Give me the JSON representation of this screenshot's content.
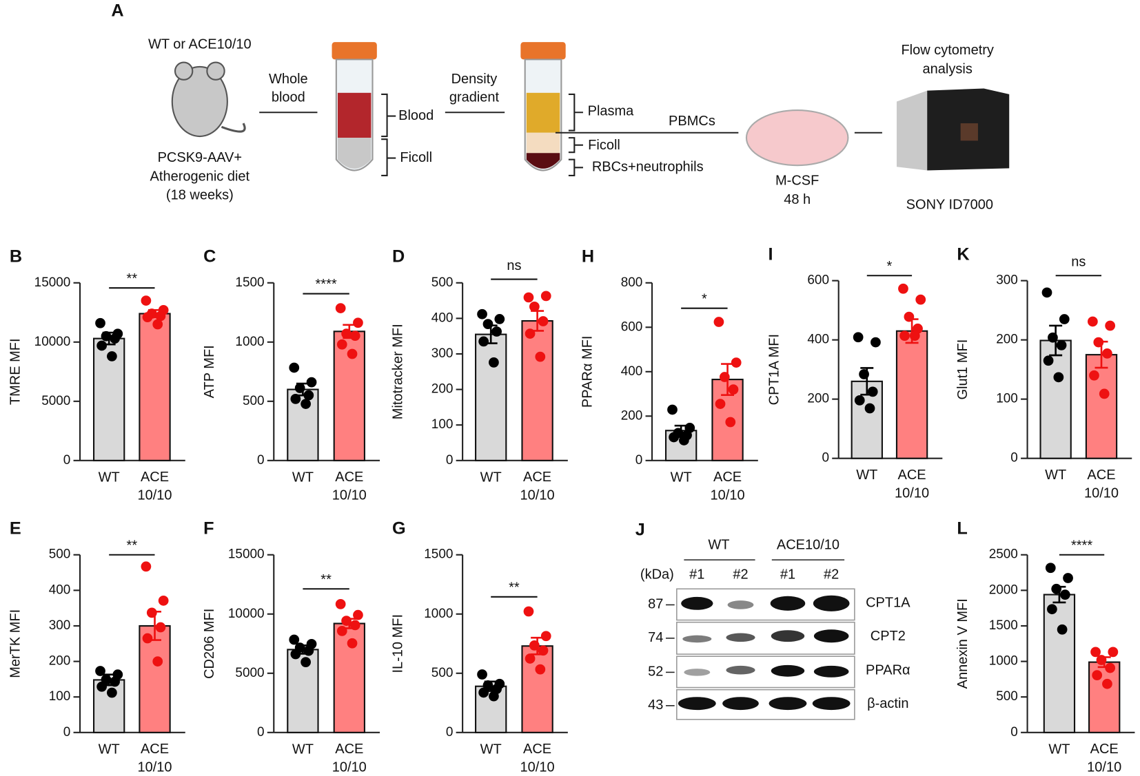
{
  "diagram": {
    "letter": "A",
    "texts": [
      "WT or ACE10/10",
      "PCSK9-AAV+",
      "Atherogenic diet",
      "(18 weeks)",
      "Whole",
      "blood",
      "Blood",
      "Ficoll",
      "Density",
      "gradient",
      "Plasma",
      "Ficoll",
      "RBCs+neutrophils",
      "PBMCs",
      "M-CSF",
      "48 h",
      "Flow cytometry",
      "analysis",
      "SONY ID7000"
    ]
  },
  "blot": {
    "letter": "J",
    "groups": [
      "WT",
      "ACE10/10"
    ],
    "unit": "(kDa)",
    "lanes": [
      "#1",
      "#2",
      "#1",
      "#2"
    ],
    "markers": [
      "87",
      "74",
      "52",
      "43"
    ],
    "proteins": [
      "CPT1A",
      "CPT2",
      "PPARα",
      "β-actin"
    ]
  },
  "chart_data": [
    {
      "type": "bar",
      "letter": "B",
      "ylabel": "TMRE MFI",
      "categories": [
        "WT",
        "ACE 10/10"
      ],
      "values": [
        10300,
        12400
      ],
      "errors": [
        500,
        300
      ],
      "points": [
        [
          11600,
          10700,
          10500,
          10300,
          9700,
          8800
        ],
        [
          13500,
          12700,
          12400,
          12200,
          12100,
          11500
        ]
      ],
      "colors": [
        "#d9d9d9",
        "#ff8080"
      ],
      "point_colors": [
        "#000000",
        "#ee1111"
      ],
      "significance": "**",
      "ylim": [
        0,
        15000
      ],
      "yticks": [
        0,
        5000,
        10000,
        15000
      ]
    },
    {
      "type": "bar",
      "letter": "C",
      "ylabel": "ATP MFI",
      "categories": [
        "WT",
        "ACE 10/10"
      ],
      "values": [
        600,
        1090
      ],
      "errors": [
        50,
        55
      ],
      "points": [
        [
          784,
          661,
          612,
          551,
          520,
          478
        ],
        [
          1286,
          1163,
          1071,
          1053,
          980,
          900
        ]
      ],
      "colors": [
        "#d9d9d9",
        "#ff8080"
      ],
      "point_colors": [
        "#000000",
        "#ee1111"
      ],
      "significance": "****",
      "ylim": [
        0,
        1500
      ],
      "yticks": [
        0,
        500,
        1000,
        1500
      ]
    },
    {
      "type": "bar",
      "letter": "D",
      "ylabel": "Mitotracker MFI",
      "categories": [
        "WT",
        "ACE 10/10"
      ],
      "values": [
        355,
        393
      ],
      "errors": [
        25,
        28
      ],
      "points": [
        [
          412,
          398,
          384,
          363,
          335,
          276
        ],
        [
          459,
          463,
          433,
          392,
          357,
          292
        ]
      ],
      "colors": [
        "#d9d9d9",
        "#ff8080"
      ],
      "point_colors": [
        "#000000",
        "#ee1111"
      ],
      "significance": "ns",
      "ylim": [
        0,
        500
      ],
      "yticks": [
        0,
        100,
        200,
        300,
        400,
        500
      ]
    },
    {
      "type": "bar",
      "letter": "H",
      "ylabel": "PPARα MFI",
      "categories": [
        "WT",
        "ACE 10/10"
      ],
      "values": [
        135,
        365
      ],
      "errors": [
        22,
        70
      ],
      "points": [
        [
          229,
          147,
          124,
          114,
          105,
          91
        ],
        [
          624,
          441,
          376,
          320,
          255,
          173
        ]
      ],
      "colors": [
        "#d9d9d9",
        "#ff8080"
      ],
      "point_colors": [
        "#000000",
        "#ee1111"
      ],
      "significance": "*",
      "ylim": [
        0,
        800
      ],
      "yticks": [
        0,
        200,
        400,
        600,
        800
      ]
    },
    {
      "type": "bar",
      "letter": "I",
      "ylabel": "CPT1A MFI",
      "categories": [
        "WT",
        "ACE 10/10"
      ],
      "values": [
        260,
        430
      ],
      "errors": [
        45,
        40
      ],
      "points": [
        [
          409,
          392,
          284,
          225,
          196,
          169
        ],
        [
          573,
          536,
          478,
          438,
          414,
          414
        ]
      ],
      "colors": [
        "#d9d9d9",
        "#ff8080"
      ],
      "point_colors": [
        "#000000",
        "#ee1111"
      ],
      "significance": "*",
      "ylim": [
        0,
        600
      ],
      "yticks": [
        0,
        200,
        400,
        600
      ]
    },
    {
      "type": "bar",
      "letter": "K",
      "ylabel": "Glut1 MFI",
      "categories": [
        "WT",
        "ACE 10/10"
      ],
      "values": [
        199,
        175
      ],
      "errors": [
        25,
        22
      ],
      "points": [
        [
          280,
          235,
          204,
          191,
          165,
          137
        ],
        [
          231,
          224,
          196,
          177,
          140,
          109
        ]
      ],
      "colors": [
        "#d9d9d9",
        "#ff8080"
      ],
      "point_colors": [
        "#000000",
        "#ee1111"
      ],
      "significance": "ns",
      "ylim": [
        0,
        300
      ],
      "yticks": [
        0,
        100,
        200,
        300
      ]
    },
    {
      "type": "bar",
      "letter": "E",
      "ylabel": "MerTK MFI",
      "categories": [
        "WT",
        "ACE 10/10"
      ],
      "values": [
        148,
        300
      ],
      "errors": [
        15,
        40
      ],
      "points": [
        [
          173,
          163,
          149,
          143,
          129,
          112
        ],
        [
          467,
          371,
          337,
          296,
          265,
          200
        ]
      ],
      "colors": [
        "#d9d9d9",
        "#ff8080"
      ],
      "point_colors": [
        "#000000",
        "#ee1111"
      ],
      "significance": "**",
      "ylim": [
        0,
        500
      ],
      "yticks": [
        0,
        100,
        200,
        300,
        400,
        500
      ]
    },
    {
      "type": "bar",
      "letter": "F",
      "ylabel": "CD206 MFI",
      "categories": [
        "WT",
        "ACE 10/10"
      ],
      "values": [
        7000,
        9200
      ],
      "errors": [
        350,
        400
      ],
      "points": [
        [
          7837,
          7469,
          7163,
          6900,
          6612,
          5939
        ],
        [
          10837,
          9918,
          9429,
          9061,
          8571,
          7531
        ]
      ],
      "colors": [
        "#d9d9d9",
        "#ff8080"
      ],
      "point_colors": [
        "#000000",
        "#ee1111"
      ],
      "significance": "**",
      "ylim": [
        0,
        15000
      ],
      "yticks": [
        0,
        5000,
        10000,
        15000
      ]
    },
    {
      "type": "bar",
      "letter": "G",
      "ylabel": "IL-10 MFI",
      "categories": [
        "WT",
        "ACE 10/10"
      ],
      "values": [
        390,
        730
      ],
      "errors": [
        40,
        70
      ],
      "points": [
        [
          490,
          410,
          398,
          367,
          337,
          306
        ],
        [
          1022,
          814,
          735,
          692,
          624,
          533
        ]
      ],
      "colors": [
        "#d9d9d9",
        "#ff8080"
      ],
      "point_colors": [
        "#000000",
        "#ee1111"
      ],
      "significance": "**",
      "ylim": [
        0,
        1500
      ],
      "yticks": [
        0,
        500,
        1000,
        1500
      ]
    },
    {
      "type": "bar",
      "letter": "L",
      "ylabel": "Annexin V MFI",
      "categories": [
        "WT",
        "ACE 10/10"
      ],
      "values": [
        1940,
        990
      ],
      "errors": [
        110,
        70
      ],
      "points": [
        [
          2316,
          2173,
          2020,
          1939,
          1735,
          1449
        ],
        [
          1133,
          1133,
          1020,
          908,
          806,
          684
        ]
      ],
      "colors": [
        "#d9d9d9",
        "#ff8080"
      ],
      "point_colors": [
        "#000000",
        "#ee1111"
      ],
      "significance": "****",
      "ylim": [
        0,
        2500
      ],
      "yticks": [
        0,
        500,
        1000,
        1500,
        2000,
        2500
      ]
    }
  ]
}
